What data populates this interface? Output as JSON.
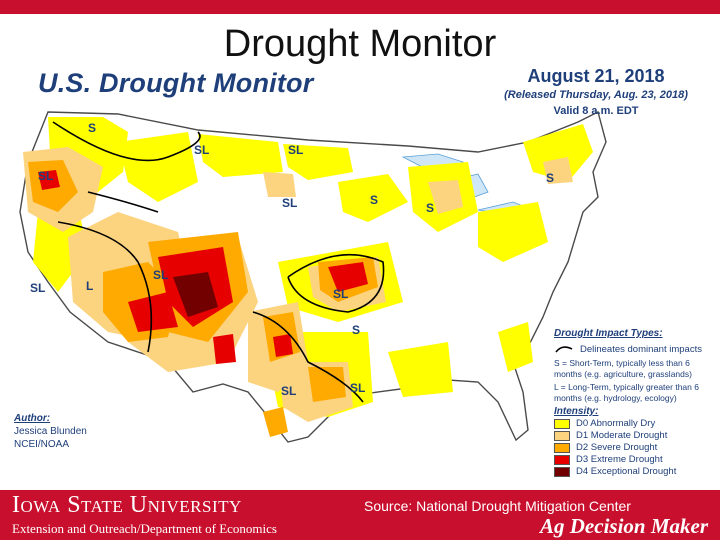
{
  "slide": {
    "title": "Drought Monitor"
  },
  "map": {
    "title": "U.S. Drought Monitor",
    "date": "August 21, 2018",
    "released": "(Released Thursday, Aug. 23, 2018)",
    "valid": "Valid 8 a.m. EDT",
    "region_labels": [
      "S",
      "SL",
      "SL",
      "SL",
      "SL",
      "L",
      "SL",
      "S",
      "S",
      "S",
      "SL",
      "S",
      "SL",
      "SL",
      "SL"
    ],
    "author": {
      "heading": "Author:",
      "name": "Jessica Blunden",
      "org": "NCEI/NOAA"
    },
    "legend": {
      "impact_heading": "Drought Impact Types:",
      "impact_line_label": "Delineates dominant impacts",
      "short_term_note": "S = Short-Term, typically less than 6 months (e.g. agriculture, grasslands)",
      "long_term_note": "L = Long-Term, typically greater than 6 months (e.g. hydrology, ecology)",
      "intensity_heading": "Intensity:",
      "levels": [
        {
          "label": "D0 Abnormally Dry",
          "color": "#ffff00"
        },
        {
          "label": "D1 Moderate Drought",
          "color": "#fcd37f"
        },
        {
          "label": "D2 Severe Drought",
          "color": "#ffaa00"
        },
        {
          "label": "D3 Extreme Drought",
          "color": "#e60000"
        },
        {
          "label": "D4 Exceptional Drought",
          "color": "#730000"
        }
      ]
    }
  },
  "footer": {
    "university": "Iowa State University",
    "department": "Extension and Outreach/Department of Economics",
    "source": "Source: National Drought Mitigation Center",
    "brand": "Ag Decision Maker"
  },
  "colors": {
    "brand_red": "#c8102e",
    "map_text": "#1f3f7a"
  }
}
